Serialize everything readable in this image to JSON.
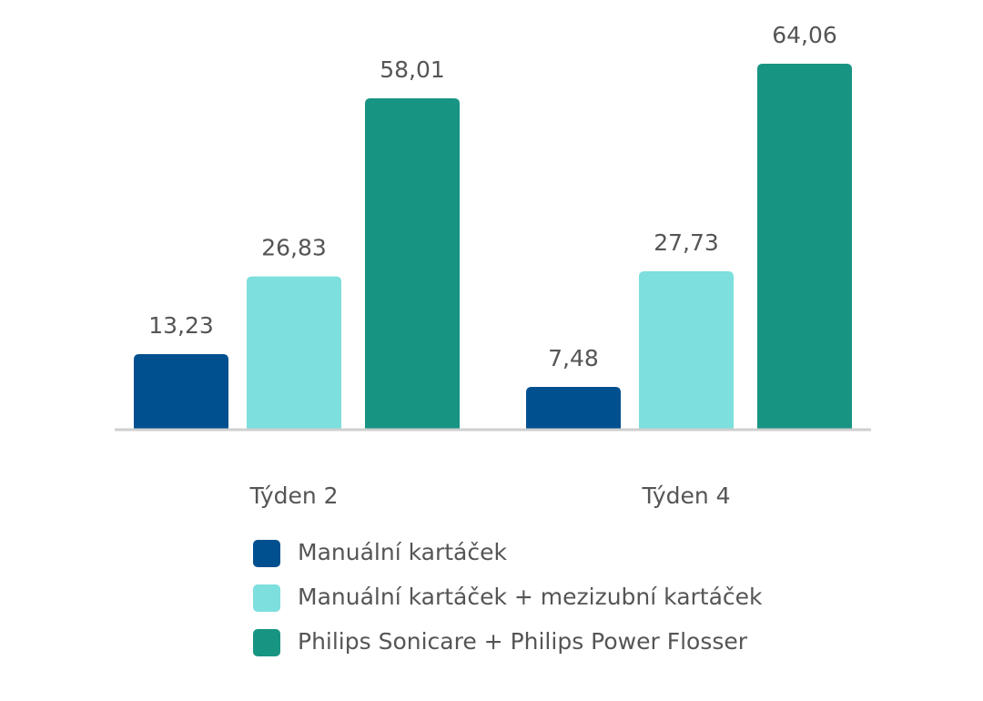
{
  "chart_data": {
    "type": "bar",
    "categories": [
      "Týden 2",
      "Týden 4"
    ],
    "series": [
      {
        "name": "Manuální kartáček",
        "color": "#00508f",
        "values": [
          13.23,
          7.48
        ],
        "value_labels": [
          "13,23",
          "7,48"
        ]
      },
      {
        "name": "Manuální kartáček + mezizubní kartáček",
        "color": "#7ddfde",
        "values": [
          26.83,
          27.73
        ],
        "value_labels": [
          "26,83",
          "27,73"
        ]
      },
      {
        "name": "Philips Sonicare + Philips Power Flosser",
        "color": "#189483",
        "values": [
          58.01,
          64.06
        ],
        "value_labels": [
          "58,01",
          "64,06"
        ]
      }
    ]
  }
}
